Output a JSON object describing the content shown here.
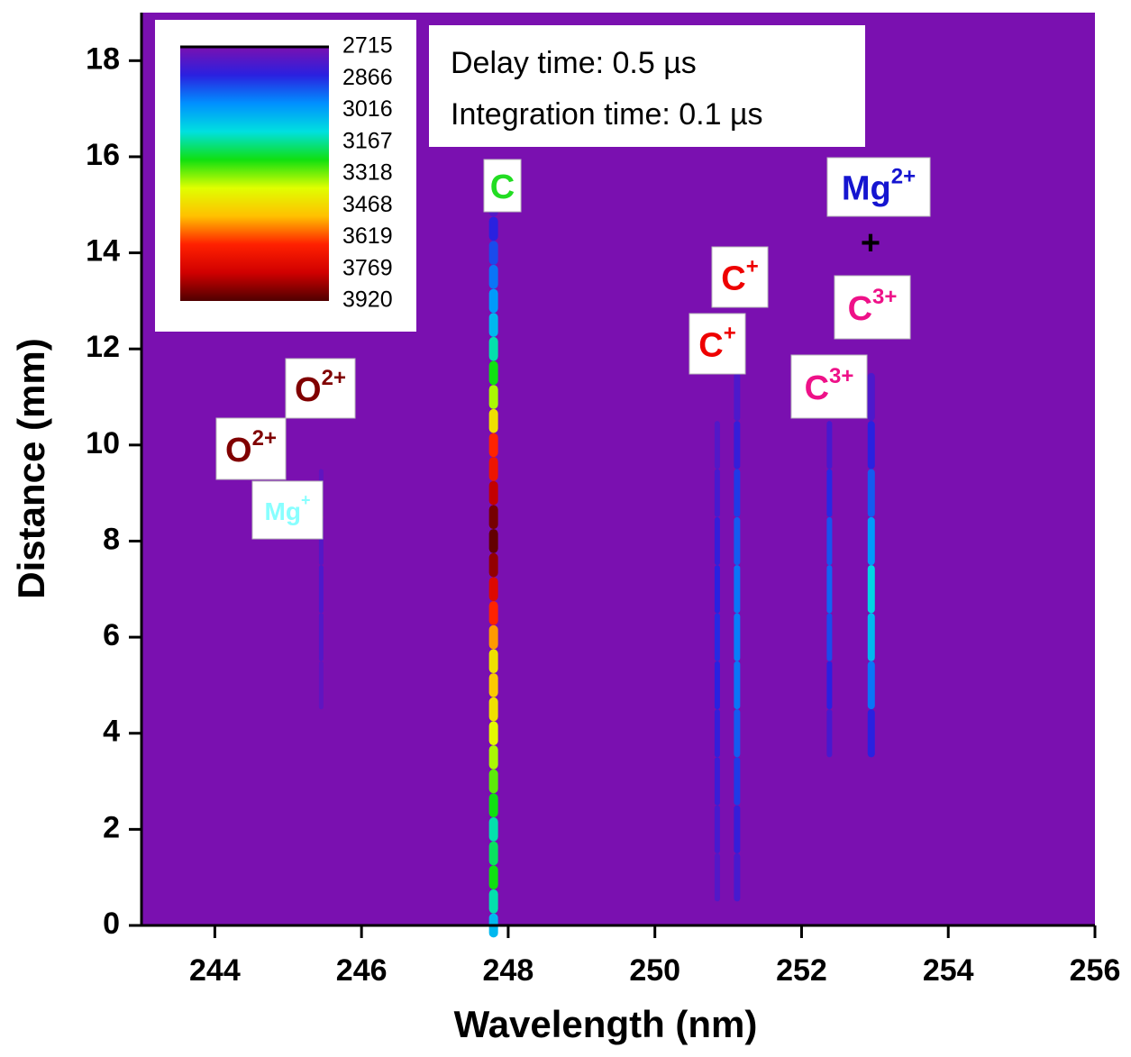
{
  "chart_data": {
    "type": "spectral-image",
    "x_label": "Wavelength (nm)",
    "y_label": "Distance (mm)",
    "xlim": [
      243,
      256
    ],
    "xticks": [
      244,
      246,
      248,
      250,
      252,
      254,
      256
    ],
    "ylim": [
      0,
      19
    ],
    "yticks": [
      0,
      2,
      4,
      6,
      8,
      10,
      12,
      14,
      16,
      18
    ],
    "background": 2715,
    "colormap": [
      "#7a10b0",
      "#2a20e0",
      "#0090ff",
      "#00e0e0",
      "#10e010",
      "#e0ff00",
      "#ffc000",
      "#ff2000",
      "#d00000",
      "#500000"
    ],
    "colorbar": {
      "lim": [
        2715,
        3920
      ],
      "ticks": [
        2715,
        2866,
        3016,
        3167,
        3318,
        3468,
        3619,
        3769,
        3920
      ]
    },
    "info": [
      "Delay time: 0.5 µs",
      "Integration time: 0.1 µs"
    ],
    "lines": [
      {
        "x": 247.8,
        "y": [
          0,
          0.5,
          1,
          1.5,
          2,
          2.5,
          3,
          3.5,
          4,
          4.5,
          5,
          5.5,
          6,
          6.5,
          7,
          7.5,
          8,
          8.5,
          9,
          9.5,
          10,
          10.5,
          11,
          11.5,
          12,
          12.5,
          13,
          13.5,
          14,
          14.5,
          15
        ],
        "values": [
          3050,
          3150,
          3250,
          3200,
          3150,
          3250,
          3300,
          3350,
          3400,
          3450,
          3500,
          3450,
          3550,
          3650,
          3750,
          3850,
          3900,
          3880,
          3800,
          3700,
          3650,
          3450,
          3350,
          3250,
          3150,
          3050,
          3000,
          2950,
          2900,
          2850,
          2780
        ]
      },
      {
        "x": 245.45,
        "y": [
          5,
          6,
          7,
          8,
          9
        ],
        "values": [
          2760,
          2780,
          2790,
          2780,
          2760
        ]
      },
      {
        "x": 250.85,
        "y": [
          1,
          2,
          3,
          4,
          5,
          6,
          7,
          8,
          9,
          10
        ],
        "values": [
          2780,
          2800,
          2820,
          2830,
          2850,
          2860,
          2850,
          2830,
          2800,
          2780
        ]
      },
      {
        "x": 251.12,
        "y": [
          1,
          2,
          3,
          4,
          5,
          6,
          7,
          8,
          9,
          10,
          11
        ],
        "values": [
          2800,
          2830,
          2880,
          2920,
          2950,
          2960,
          2950,
          2920,
          2880,
          2830,
          2790
        ]
      },
      {
        "x": 252.38,
        "y": [
          4,
          5,
          6,
          7,
          8,
          9,
          10
        ],
        "values": [
          2800,
          2850,
          2900,
          2930,
          2910,
          2860,
          2800
        ]
      },
      {
        "x": 252.95,
        "y": [
          4,
          5,
          6,
          7,
          8,
          9,
          10,
          11
        ],
        "values": [
          2850,
          2950,
          3050,
          3100,
          3000,
          2920,
          2850,
          2790
        ]
      }
    ],
    "annotations": [
      {
        "text": "C",
        "color": "#22dd22"
      },
      {
        "text": "Mg",
        "sup": "2+",
        "color": "#1515d0"
      },
      {
        "text": "+",
        "color": "#000000"
      },
      {
        "text": "C",
        "sup": "3+",
        "color": "#ee1188"
      },
      {
        "text": "C",
        "sup": "+",
        "color": "#ee0000"
      },
      {
        "text": "C",
        "sup": "+",
        "color": "#ee0000"
      },
      {
        "text": "C",
        "sup": "3+",
        "color": "#ee1188"
      },
      {
        "text": "O",
        "sup": "2+",
        "color": "#800000"
      },
      {
        "text": "O",
        "sup": "2+",
        "color": "#800000"
      },
      {
        "text": "Mg",
        "sup": "+",
        "color": "#88ffff"
      }
    ]
  }
}
